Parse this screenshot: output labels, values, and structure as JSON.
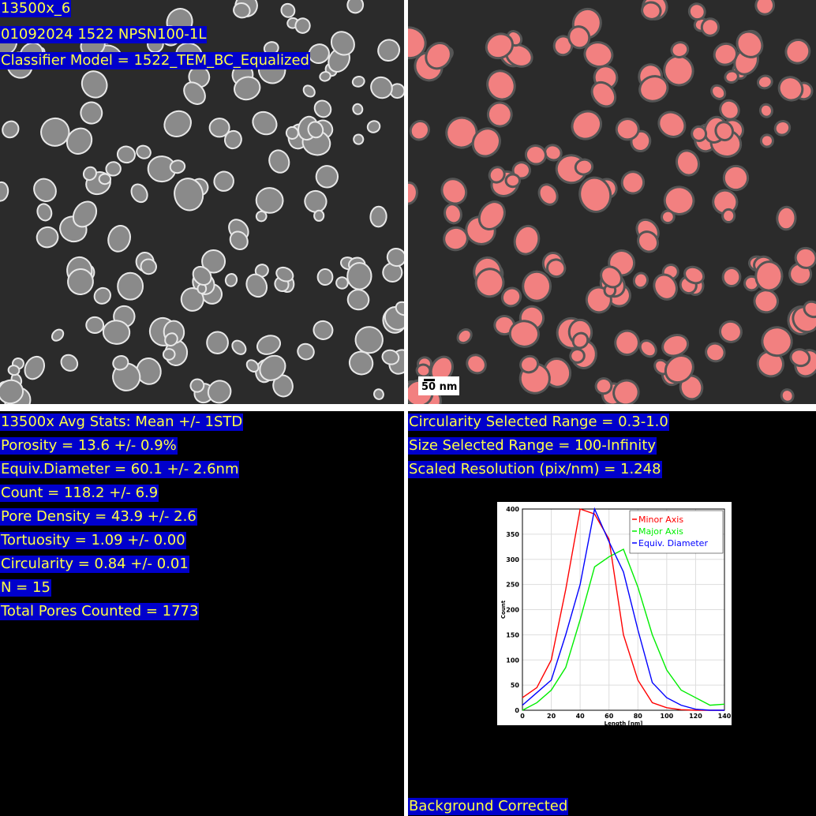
{
  "left_panel": {
    "labels": [
      "13500x_6",
      "01092024 1522 NPSN100-1L",
      "Classifier Model = 1522_TEM_BC_Equalized"
    ]
  },
  "right_panel": {
    "scale_bar": "50 nm"
  },
  "stats": {
    "lines": [
      "13500x Avg Stats: Mean +/- 1STD",
      "Porosity = 13.6 +/- 0.9%",
      "Equiv.Diameter = 60.1 +/- 2.6nm",
      "Count = 118.2 +/- 6.9",
      "Pore Density = 43.9 +/- 2.6",
      "Tortuosity = 1.09 +/- 0.00",
      "Circularity = 0.84 +/- 0.01",
      "N = 15",
      "Total Pores Counted = 1773"
    ]
  },
  "settings": {
    "lines": [
      "Circularity Selected Range = 0.3-1.0",
      "Size Selected Range = 100-Infinity",
      "Scaled Resolution (pix/nm) = 1.248"
    ]
  },
  "footer": "Background Corrected",
  "chart_data": {
    "type": "line",
    "x_label": "Length [nm]",
    "y_label": "Count",
    "x": [
      0,
      10,
      20,
      30,
      40,
      50,
      60,
      70,
      80,
      90,
      100,
      110,
      120,
      130,
      140
    ],
    "series": [
      {
        "name": "Minor Axis",
        "color": "#ff0000",
        "values": [
          25,
          45,
          100,
          240,
          400,
          390,
          340,
          150,
          60,
          15,
          5,
          1,
          0,
          0,
          0
        ]
      },
      {
        "name": "Major Axis",
        "color": "#00ee00",
        "values": [
          0,
          15,
          40,
          85,
          180,
          285,
          305,
          320,
          245,
          150,
          80,
          40,
          25,
          10,
          12
        ]
      },
      {
        "name": "Equiv. Diameter",
        "color": "#0000ff",
        "values": [
          10,
          35,
          60,
          150,
          250,
          400,
          335,
          275,
          160,
          55,
          25,
          10,
          2,
          0,
          0
        ]
      }
    ],
    "xlim": [
      0,
      140
    ],
    "xticks": [
      0,
      20,
      40,
      60,
      80,
      100,
      120,
      140
    ],
    "ylim": [
      0,
      400
    ],
    "yticks": [
      0,
      50,
      100,
      150,
      200,
      250,
      300,
      350,
      400
    ],
    "grid": true,
    "legend": "top-right"
  }
}
